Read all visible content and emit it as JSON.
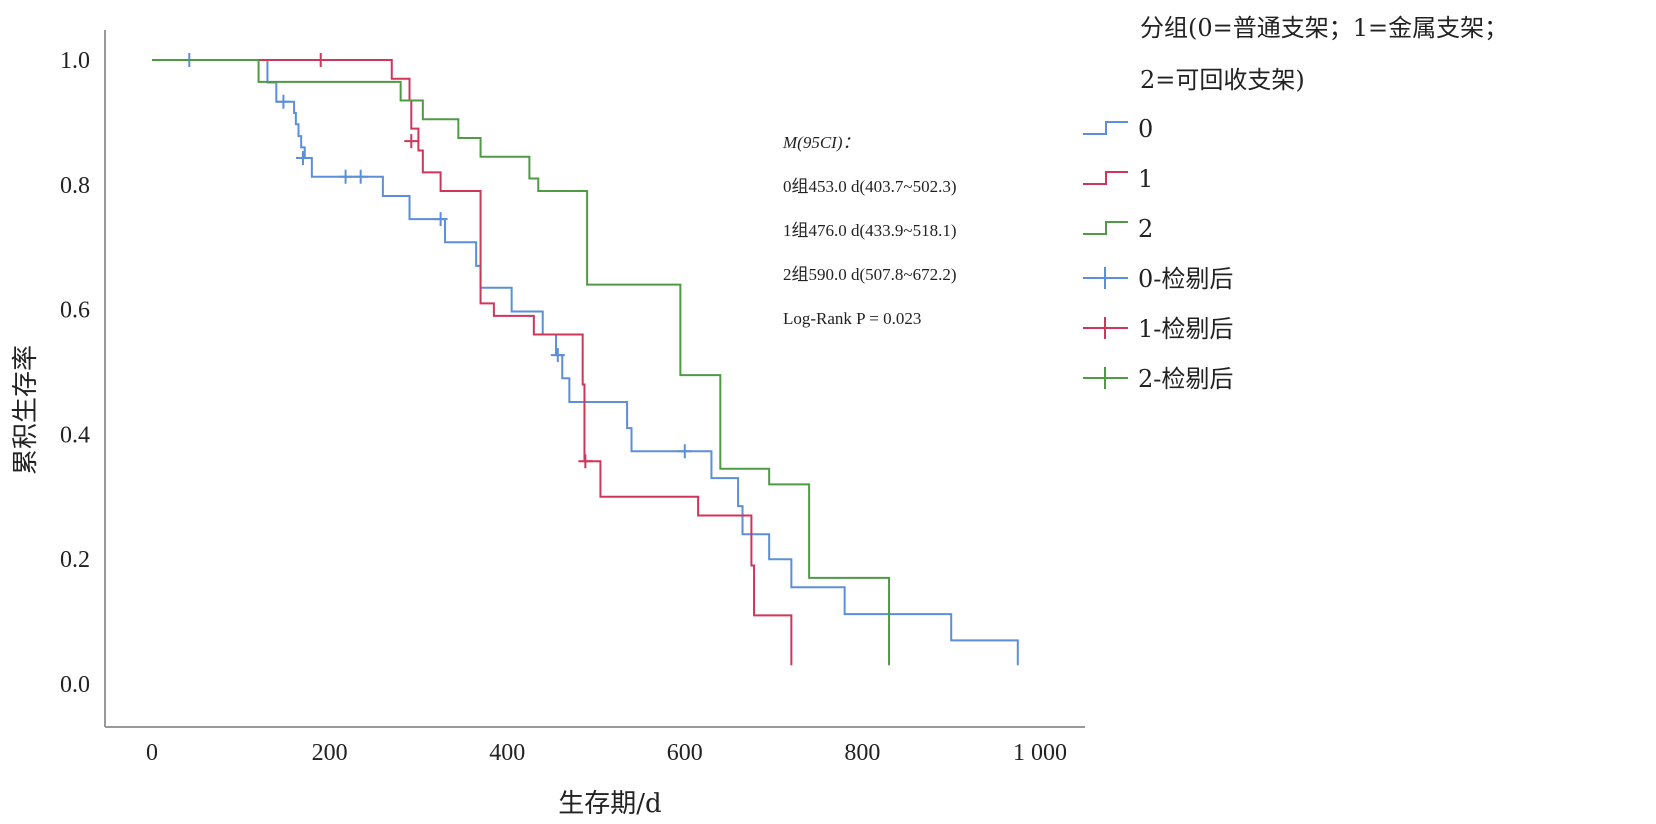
{
  "chart_data": {
    "type": "line",
    "subtype": "kaplan-meier-step",
    "xlabel": "生存期/d",
    "ylabel": "累积生存率",
    "xlim": [
      0,
      1000
    ],
    "ylim": [
      0,
      1.0
    ],
    "xticks": [
      0,
      200,
      400,
      600,
      800,
      1000
    ],
    "xtick_labels": [
      "0",
      "200",
      "400",
      "600",
      "800",
      "1 000"
    ],
    "yticks": [
      0,
      0.2,
      0.4,
      0.6,
      0.8,
      1.0
    ],
    "ytick_labels": [
      "0.0",
      "0.2",
      "0.4",
      "0.6",
      "0.8",
      "1.0"
    ],
    "grid": false,
    "legend": {
      "placement": "right",
      "title_line1": "分组(0=普通支架；1=金属支架；",
      "title_line2": "2=可回收支架)",
      "entries": [
        "0",
        "1",
        "2",
        "0-检剔后",
        "1-检剔后",
        "2-检剔后"
      ]
    },
    "annotation": {
      "line1": "M(95CI)：",
      "line2": "0组453.0 d(403.7~502.3)",
      "line3": "1组476.0 d(433.9~518.1)",
      "line4": "2组590.0 d(507.8~672.2)",
      "line5": "Log-Rank P = 0.023"
    },
    "series": [
      {
        "name": "0",
        "color": "#5b8fd9",
        "steps": [
          [
            0,
            1.0
          ],
          [
            130,
            0.964
          ],
          [
            140,
            0.933
          ],
          [
            160,
            0.915
          ],
          [
            162,
            0.897
          ],
          [
            165,
            0.878
          ],
          [
            168,
            0.86
          ],
          [
            172,
            0.843
          ],
          [
            180,
            0.813
          ],
          [
            260,
            0.782
          ],
          [
            290,
            0.745
          ],
          [
            330,
            0.708
          ],
          [
            365,
            0.67
          ],
          [
            370,
            0.635
          ],
          [
            405,
            0.597
          ],
          [
            440,
            0.56
          ],
          [
            455,
            0.527
          ],
          [
            462,
            0.49
          ],
          [
            470,
            0.452
          ],
          [
            535,
            0.41
          ],
          [
            540,
            0.373
          ],
          [
            630,
            0.33
          ],
          [
            660,
            0.285
          ],
          [
            665,
            0.24
          ],
          [
            695,
            0.2
          ],
          [
            720,
            0.155
          ],
          [
            780,
            0.112
          ],
          [
            900,
            0.07
          ],
          [
            975,
            0.07
          ]
        ],
        "end": 0.03,
        "censored": [
          [
            42,
            1.0
          ],
          [
            148,
            0.933
          ],
          [
            170,
            0.843
          ],
          [
            218,
            0.813
          ],
          [
            235,
            0.813
          ],
          [
            325,
            0.745
          ],
          [
            457,
            0.527
          ],
          [
            600,
            0.373
          ]
        ]
      },
      {
        "name": "1",
        "color": "#d0355a",
        "steps": [
          [
            0,
            1.0
          ],
          [
            270,
            0.97
          ],
          [
            290,
            0.935
          ],
          [
            292,
            0.89
          ],
          [
            300,
            0.855
          ],
          [
            305,
            0.82
          ],
          [
            325,
            0.79
          ],
          [
            370,
            0.61
          ],
          [
            385,
            0.59
          ],
          [
            430,
            0.56
          ],
          [
            485,
            0.48
          ],
          [
            487,
            0.357
          ],
          [
            505,
            0.3
          ],
          [
            615,
            0.27
          ],
          [
            675,
            0.19
          ],
          [
            678,
            0.11
          ],
          [
            720,
            0.11
          ]
        ],
        "end": 0.03,
        "censored": [
          [
            190,
            1.0
          ],
          [
            292,
            0.87
          ],
          [
            488,
            0.357
          ]
        ]
      },
      {
        "name": "2",
        "color": "#4f9a45",
        "steps": [
          [
            0,
            1.0
          ],
          [
            120,
            0.965
          ],
          [
            280,
            0.935
          ],
          [
            305,
            0.905
          ],
          [
            345,
            0.875
          ],
          [
            370,
            0.845
          ],
          [
            425,
            0.81
          ],
          [
            435,
            0.79
          ],
          [
            490,
            0.64
          ],
          [
            595,
            0.495
          ],
          [
            640,
            0.345
          ],
          [
            695,
            0.32
          ],
          [
            740,
            0.17
          ],
          [
            830,
            0.17
          ]
        ],
        "end": 0.03,
        "censored": []
      }
    ]
  }
}
